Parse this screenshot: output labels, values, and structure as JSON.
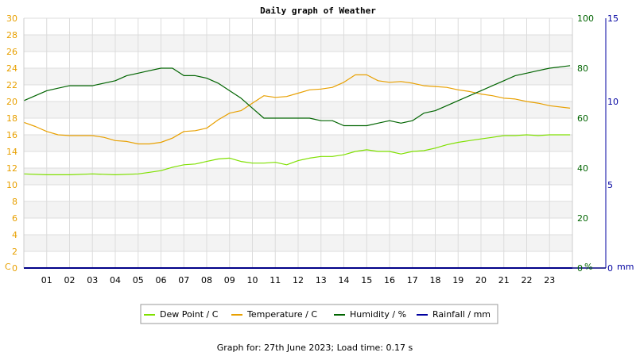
{
  "chart_data": {
    "type": "line",
    "title": "Daily graph of Weather",
    "footer": "Graph for: 27th June 2023; Load time: 0.17 s",
    "x_tick_labels": [
      "01",
      "02",
      "03",
      "04",
      "05",
      "06",
      "07",
      "08",
      "09",
      "10",
      "11",
      "12",
      "13",
      "14",
      "15",
      "16",
      "17",
      "18",
      "19",
      "20",
      "21",
      "22",
      "23"
    ],
    "xlim": [
      0,
      24
    ],
    "axes": {
      "left": {
        "unit": "C",
        "min": 0,
        "max": 30,
        "ticks": [
          0,
          2,
          4,
          6,
          8,
          10,
          12,
          14,
          16,
          18,
          20,
          22,
          24,
          26,
          28,
          30
        ],
        "color": "#e8a000"
      },
      "right1": {
        "unit": "%",
        "min": 0,
        "max": 100,
        "ticks": [
          0,
          20,
          40,
          60,
          80,
          100
        ],
        "color": "#006400"
      },
      "right2": {
        "unit": "mm",
        "min": 0,
        "max": 15,
        "ticks": [
          0,
          5,
          10,
          15
        ],
        "color": "#0000a0"
      }
    },
    "grid": true,
    "legend_position": "bottom",
    "series": [
      {
        "name": "Dew Point / C",
        "color": "#7fe000",
        "axis": "left",
        "x": [
          0,
          1,
          2,
          3,
          4,
          5,
          5.5,
          6,
          6.5,
          7,
          7.5,
          8,
          8.5,
          9,
          9.5,
          10,
          10.5,
          11,
          11.5,
          12,
          12.5,
          13,
          13.5,
          14,
          14.5,
          15,
          15.5,
          16,
          16.5,
          17,
          17.5,
          18,
          18.5,
          19,
          19.5,
          20,
          20.5,
          21,
          21.5,
          22,
          22.5,
          23,
          23.9
        ],
        "y": [
          11.3,
          11.2,
          11.2,
          11.3,
          11.2,
          11.3,
          11.5,
          11.7,
          12.1,
          12.4,
          12.5,
          12.8,
          13.1,
          13.2,
          12.8,
          12.6,
          12.6,
          12.7,
          12.4,
          12.9,
          13.2,
          13.4,
          13.4,
          13.6,
          14.0,
          14.2,
          14.0,
          14.0,
          13.7,
          14.0,
          14.1,
          14.4,
          14.8,
          15.1,
          15.3,
          15.5,
          15.7,
          15.9,
          15.9,
          16.0,
          15.9,
          16.0,
          16.0
        ]
      },
      {
        "name": "Temperature / C",
        "color": "#e8a000",
        "axis": "left",
        "x": [
          0,
          0.5,
          1,
          1.5,
          2,
          2.5,
          3,
          3.5,
          4,
          4.5,
          5,
          5.5,
          6,
          6.5,
          7,
          7.5,
          8,
          8.5,
          9,
          9.5,
          10,
          10.5,
          11,
          11.5,
          12,
          12.5,
          13,
          13.5,
          14,
          14.5,
          15,
          15.5,
          16,
          16.5,
          17,
          17.5,
          18,
          18.5,
          19,
          19.5,
          20,
          20.5,
          21,
          21.5,
          22,
          22.5,
          23,
          23.9
        ],
        "y": [
          17.5,
          17.0,
          16.4,
          16.0,
          15.9,
          15.9,
          15.9,
          15.7,
          15.3,
          15.2,
          14.9,
          14.9,
          15.1,
          15.6,
          16.4,
          16.5,
          16.8,
          17.8,
          18.6,
          18.9,
          19.8,
          20.7,
          20.5,
          20.6,
          21.0,
          21.4,
          21.5,
          21.7,
          22.3,
          23.2,
          23.2,
          22.5,
          22.3,
          22.4,
          22.2,
          21.9,
          21.8,
          21.7,
          21.4,
          21.2,
          20.9,
          20.7,
          20.4,
          20.3,
          20.0,
          19.8,
          19.5,
          19.2
        ]
      },
      {
        "name": "Humidity / %",
        "color": "#006400",
        "axis": "right1",
        "x": [
          0,
          0.5,
          1,
          1.5,
          2,
          2.5,
          3,
          3.5,
          4,
          4.5,
          5,
          5.5,
          6,
          6.5,
          7,
          7.5,
          8,
          8.5,
          9,
          9.5,
          10,
          10.5,
          11,
          11.5,
          12,
          12.5,
          13,
          13.5,
          14,
          14.5,
          15,
          15.5,
          16,
          16.5,
          17,
          17.5,
          18,
          18.5,
          19,
          19.5,
          20,
          20.5,
          21,
          21.5,
          22,
          22.5,
          23,
          23.9
        ],
        "y": [
          67,
          69,
          71,
          72,
          73,
          73,
          73,
          74,
          75,
          77,
          78,
          79,
          80,
          80,
          77,
          77,
          76,
          74,
          71,
          68,
          64,
          60,
          60,
          60,
          60,
          60,
          59,
          59,
          57,
          57,
          57,
          58,
          59,
          58,
          59,
          62,
          63,
          65,
          67,
          69,
          71,
          73,
          75,
          77,
          78,
          79,
          80,
          81
        ]
      },
      {
        "name": "Rainfall / mm",
        "color": "#0000a0",
        "axis": "right2",
        "x": [
          0,
          24
        ],
        "y": [
          0,
          0
        ]
      }
    ]
  }
}
